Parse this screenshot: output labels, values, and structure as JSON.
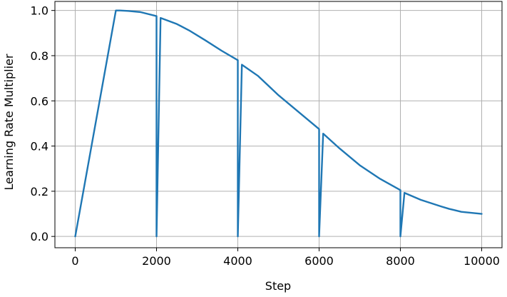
{
  "chart_data": {
    "type": "line",
    "title": "",
    "xlabel": "Step",
    "ylabel": "Learning Rate Multiplier",
    "xlim": [
      -500,
      10500
    ],
    "ylim": [
      -0.05,
      1.04
    ],
    "xticks": [
      0,
      2000,
      4000,
      6000,
      8000,
      10000
    ],
    "xtick_labels": [
      "0",
      "2000",
      "4000",
      "6000",
      "8000",
      "10000"
    ],
    "yticks": [
      0.0,
      0.2,
      0.4,
      0.6,
      0.8,
      1.0
    ],
    "ytick_labels": [
      "0.0",
      "0.2",
      "0.4",
      "0.6",
      "0.8",
      "1.0"
    ],
    "grid": true,
    "line_color": "#1f77b4",
    "series": [
      {
        "points": [
          [
            0,
            0.0
          ],
          [
            1000,
            1.0
          ],
          [
            1100,
            1.0
          ],
          [
            1300,
            0.998
          ],
          [
            1600,
            0.993
          ],
          [
            2000,
            0.975
          ],
          [
            2000,
            0.0
          ],
          [
            2100,
            0.967
          ],
          [
            2500,
            0.94
          ],
          [
            2800,
            0.912
          ],
          [
            3200,
            0.868
          ],
          [
            3600,
            0.822
          ],
          [
            4000,
            0.78
          ],
          [
            4000,
            0.0
          ],
          [
            4100,
            0.76
          ],
          [
            4500,
            0.71
          ],
          [
            5000,
            0.625
          ],
          [
            5500,
            0.55
          ],
          [
            6000,
            0.475
          ],
          [
            6000,
            0.0
          ],
          [
            6100,
            0.455
          ],
          [
            6500,
            0.39
          ],
          [
            7000,
            0.315
          ],
          [
            7500,
            0.255
          ],
          [
            8000,
            0.205
          ],
          [
            8000,
            0.0
          ],
          [
            8100,
            0.193
          ],
          [
            8500,
            0.162
          ],
          [
            9000,
            0.133
          ],
          [
            9200,
            0.122
          ],
          [
            9500,
            0.109
          ],
          [
            10000,
            0.1
          ]
        ]
      }
    ]
  }
}
